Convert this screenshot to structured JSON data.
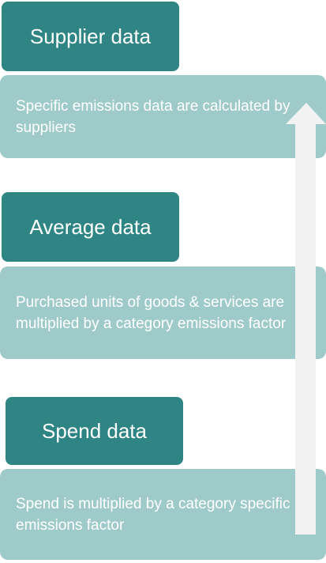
{
  "levels": [
    {
      "title": "Supplier data",
      "description": "Specific emissions data are calculated by suppliers"
    },
    {
      "title": "Average data",
      "description": "Purchased units of goods & services are multiplied by a category emissions factor"
    },
    {
      "title": "Spend data",
      "description": "Spend is multiplied by a category specific emissions factor"
    }
  ]
}
